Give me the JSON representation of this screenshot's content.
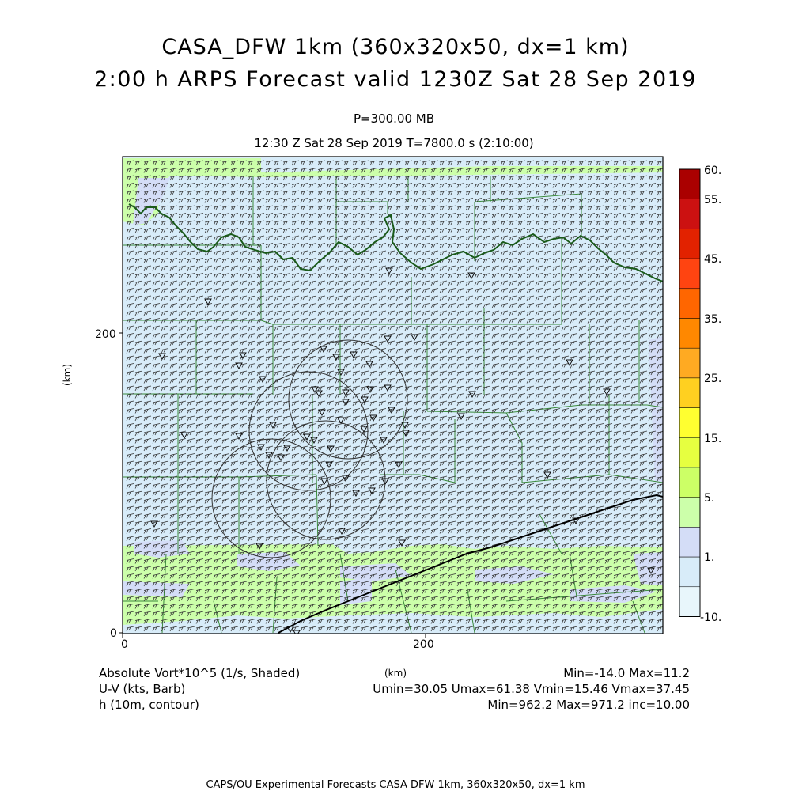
{
  "title": "CASA_DFW 1km (360x320x50, dx=1 km)",
  "subtitle": "2:00 h ARPS Forecast valid 1230Z Sat 28 Sep 2019",
  "level": "P=300.00 MB",
  "valid_time": "12:30 Z Sat 28 Sep 2019    T=7800.0 s (2:10:00)",
  "axes": {
    "x_label": "(km)",
    "y_label": "(km)",
    "x_ticks": [
      "0",
      "200"
    ],
    "y_ticks": [
      "0",
      "200"
    ]
  },
  "legend": {
    "labels": [
      "60.",
      "55.",
      "45.",
      "35.",
      "25.",
      "15.",
      "5.",
      "1.",
      "-10."
    ],
    "colors": [
      "#aa0000",
      "#cc1111",
      "#e22200",
      "#ff4411",
      "#ff6600",
      "#ff8800",
      "#ffaa22",
      "#ffd020",
      "#ffff30",
      "#e6ff40",
      "#ccff66",
      "#ccffaa",
      "#d4ddf7",
      "#d8ecf9",
      "#e8f6fb"
    ]
  },
  "fields": {
    "vort_label": "Absolute Vort*10^5 (1/s, Shaded)",
    "vort_stats": "Min=-14.0 Max=11.2",
    "wind_label": "U-V (kts, Barb)",
    "wind_stats": "Umin=30.05 Umax=61.38 Vmin=15.46 Vmax=37.45",
    "height_label": "h (10m, contour)",
    "height_stats": "Min=962.2 Max=971.2 inc=10.00"
  },
  "footer": "CAPS/OU Experimental Forecasts   CASA DFW 1km, 360x320x50, dx=1 km",
  "map_colors": {
    "background": "#d8ecf9",
    "green_shade": "#ccffaa",
    "lavender_shade": "#d4ddf7",
    "county_lines": "#3a8a3a",
    "river": "#1a5a1a",
    "contour": "#000000",
    "barbs": "#333333"
  }
}
